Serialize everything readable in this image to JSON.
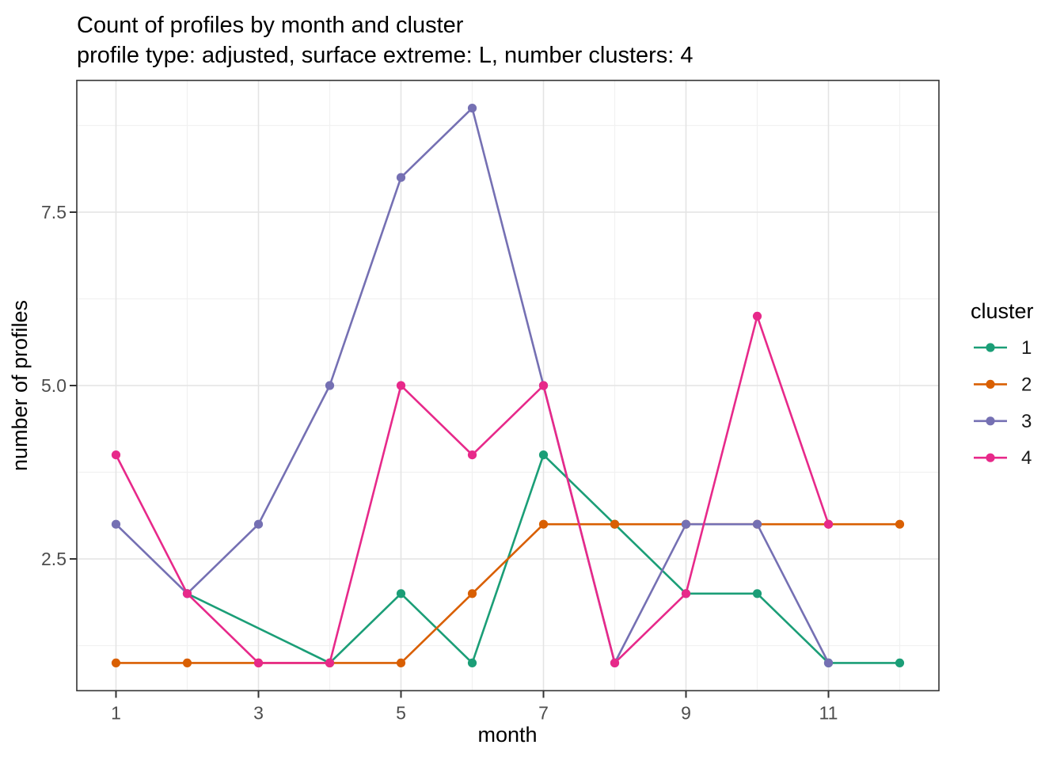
{
  "page": {
    "background": "#ffffff"
  },
  "chart_data": {
    "type": "line",
    "title": "Count of profiles by month and cluster",
    "subtitle": "profile type: adjusted, surface extreme: L, number clusters: 4",
    "xlabel": "month",
    "ylabel": "number of profiles",
    "legend_title": "cluster",
    "legend_position": "right",
    "xlim": [
      0.45,
      12.55
    ],
    "ylim": [
      0.6,
      9.4
    ],
    "grid": true,
    "x_ticks": [
      {
        "v": 1,
        "label": "1"
      },
      {
        "v": 3,
        "label": "3"
      },
      {
        "v": 5,
        "label": "5"
      },
      {
        "v": 7,
        "label": "7"
      },
      {
        "v": 9,
        "label": "9"
      },
      {
        "v": 11,
        "label": "11"
      }
    ],
    "y_ticks": [
      {
        "v": 2.5,
        "label": "2.5"
      },
      {
        "v": 5.0,
        "label": "5.0"
      },
      {
        "v": 7.5,
        "label": "7.5"
      }
    ],
    "x_minor": [
      2,
      4,
      6,
      8,
      10,
      12
    ],
    "y_minor": [
      1.25,
      3.75,
      6.25,
      8.75
    ],
    "colors": {
      "panel_border": "#333333",
      "tick": "#333333",
      "tick_label": "#4d4d4d",
      "grid_major": "#e4e4e4",
      "grid_minor": "#f1f1f1"
    },
    "series": [
      {
        "name": "1",
        "color": "#1B9E77",
        "points": [
          [
            2,
            2
          ],
          [
            4,
            1
          ],
          [
            5,
            2
          ],
          [
            6,
            1
          ],
          [
            7,
            4
          ],
          [
            8,
            3
          ],
          [
            9,
            2
          ],
          [
            10,
            2
          ],
          [
            11,
            1
          ],
          [
            12,
            1
          ]
        ]
      },
      {
        "name": "2",
        "color": "#D95F02",
        "points": [
          [
            1,
            1
          ],
          [
            2,
            1
          ],
          [
            3,
            1
          ],
          [
            4,
            1
          ],
          [
            5,
            1
          ],
          [
            6,
            2
          ],
          [
            7,
            3
          ],
          [
            8,
            3
          ],
          [
            9,
            3
          ],
          [
            10,
            3
          ],
          [
            11,
            3
          ],
          [
            12,
            3
          ]
        ]
      },
      {
        "name": "3",
        "color": "#7570B3",
        "points": [
          [
            1,
            3
          ],
          [
            2,
            2
          ],
          [
            3,
            3
          ],
          [
            4,
            5
          ],
          [
            5,
            8
          ],
          [
            6,
            9
          ],
          [
            7,
            5
          ],
          [
            8,
            1
          ],
          [
            9,
            3
          ],
          [
            10,
            3
          ],
          [
            11,
            1
          ]
        ]
      },
      {
        "name": "4",
        "color": "#E7298A",
        "points": [
          [
            1,
            4
          ],
          [
            2,
            2
          ],
          [
            3,
            1
          ],
          [
            4,
            1
          ],
          [
            5,
            5
          ],
          [
            6,
            4
          ],
          [
            7,
            5
          ],
          [
            8,
            1
          ],
          [
            9,
            2
          ],
          [
            10,
            6
          ],
          [
            11,
            3
          ]
        ]
      }
    ]
  }
}
